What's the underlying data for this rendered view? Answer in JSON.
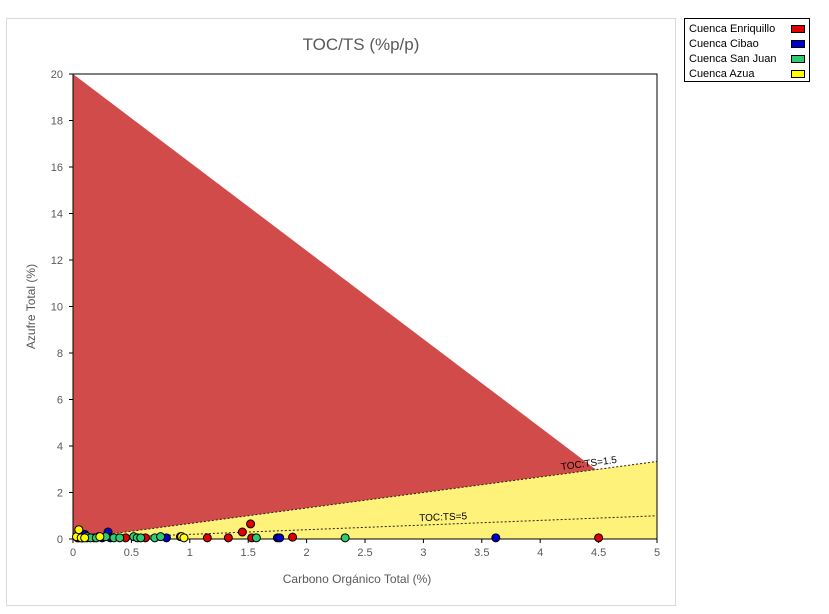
{
  "chart_data": {
    "type": "scatter",
    "title": "TOC/TS (%p/p)",
    "xlabel": "Carbono Orgánico Total (%)",
    "ylabel": "Azufre Total (%)",
    "xlim": [
      0,
      5
    ],
    "ylim": [
      0,
      20
    ],
    "x_ticks": [
      "0",
      "0.5",
      "1",
      "1.5",
      "2",
      "2.5",
      "3",
      "3.5",
      "4",
      "4.5",
      "5"
    ],
    "y_ticks": [
      "0",
      "2",
      "4",
      "6",
      "8",
      "10",
      "12",
      "14",
      "16",
      "18",
      "20"
    ],
    "grid": false,
    "legend_position": "top-right outside",
    "regions": [
      {
        "name": "above TOC:TS=5",
        "color": "#d24b4b"
      },
      {
        "name": "between TOC:TS=5 and TOC:TS=1.5",
        "color": "#ffc800"
      },
      {
        "name": "below TOC:TS=1.5",
        "color": "#fff27a"
      }
    ],
    "reference_lines": [
      {
        "label": "TOC:TS=5",
        "ratio": 5
      },
      {
        "label": "TOC:TS=1.5",
        "ratio": 1.5
      }
    ],
    "series": [
      {
        "name": "Cuenca Enriquillo",
        "color": "#e00000",
        "points": [
          [
            0.45,
            0.05
          ],
          [
            0.62,
            0.05
          ],
          [
            0.92,
            0.1
          ],
          [
            1.15,
            0.05
          ],
          [
            1.33,
            0.05
          ],
          [
            1.45,
            0.3
          ],
          [
            1.52,
            0.65
          ],
          [
            1.53,
            0.05
          ],
          [
            1.88,
            0.08
          ],
          [
            4.5,
            0.05
          ]
        ]
      },
      {
        "name": "Cuenca Cibao",
        "color": "#0000cc",
        "points": [
          [
            0.04,
            0.05
          ],
          [
            0.06,
            0.1
          ],
          [
            0.08,
            0.05
          ],
          [
            0.1,
            0.2
          ],
          [
            0.12,
            0.05
          ],
          [
            0.18,
            0.05
          ],
          [
            0.22,
            0.1
          ],
          [
            0.25,
            0.05
          ],
          [
            0.3,
            0.3
          ],
          [
            0.32,
            0.05
          ],
          [
            0.8,
            0.05
          ],
          [
            1.75,
            0.05
          ],
          [
            1.77,
            0.05
          ],
          [
            3.62,
            0.05
          ]
        ]
      },
      {
        "name": "Cuenca San Juan",
        "color": "#2ecc71",
        "points": [
          [
            0.05,
            0.05
          ],
          [
            0.08,
            0.05
          ],
          [
            0.12,
            0.1
          ],
          [
            0.15,
            0.05
          ],
          [
            0.2,
            0.05
          ],
          [
            0.28,
            0.1
          ],
          [
            0.35,
            0.05
          ],
          [
            0.4,
            0.05
          ],
          [
            0.52,
            0.1
          ],
          [
            0.55,
            0.05
          ],
          [
            0.58,
            0.05
          ],
          [
            0.7,
            0.05
          ],
          [
            0.75,
            0.1
          ],
          [
            1.57,
            0.05
          ],
          [
            2.33,
            0.05
          ]
        ]
      },
      {
        "name": "Cuenca Azua",
        "color": "#ffff00",
        "points": [
          [
            0.03,
            0.1
          ],
          [
            0.05,
            0.4
          ],
          [
            0.07,
            0.05
          ],
          [
            0.1,
            0.05
          ],
          [
            0.23,
            0.1
          ],
          [
            0.93,
            0.1
          ],
          [
            0.95,
            0.05
          ]
        ]
      }
    ]
  }
}
